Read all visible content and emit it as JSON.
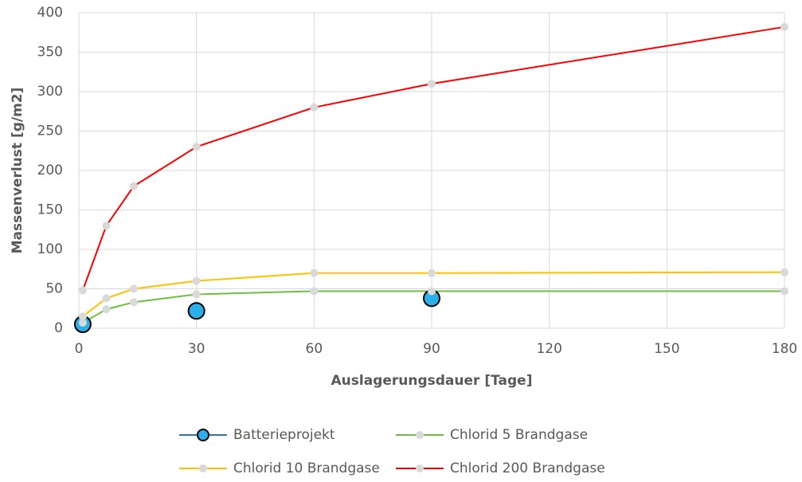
{
  "chart_data": {
    "type": "line",
    "xlabel": "Auslagerungsdauer [Tage]",
    "ylabel": "Massenverlust [g/m2]",
    "xlim": [
      0,
      180
    ],
    "xticks": [
      0,
      30,
      60,
      90,
      120,
      150,
      180
    ],
    "ylim": [
      0,
      400
    ],
    "yticks": [
      0,
      50,
      100,
      150,
      200,
      250,
      300,
      350,
      400
    ],
    "grid": true,
    "legend": "bottom",
    "series": [
      {
        "name": "Batterieprojekt",
        "color": "#2e75b6",
        "marker_color": "#29b0e8",
        "show_line": false,
        "x": [
          1,
          30,
          90
        ],
        "values": [
          5,
          22,
          38
        ]
      },
      {
        "name": "Chlorid 5 Brandgase",
        "color": "#70bf41",
        "marker_color": "#d9d9d9",
        "show_line": true,
        "x": [
          1,
          7,
          14,
          30,
          60,
          90,
          180
        ],
        "values": [
          7,
          24,
          33,
          43,
          47,
          47,
          47
        ]
      },
      {
        "name": "Chlorid 10 Brandgase",
        "color": "#ffc000",
        "marker_color": "#d9d9d9",
        "show_line": true,
        "x": [
          1,
          7,
          14,
          30,
          60,
          90,
          180
        ],
        "values": [
          15,
          38,
          50,
          60,
          70,
          70,
          71
        ]
      },
      {
        "name": "Chlorid 200 Brandgase",
        "color": "#ff0000",
        "marker_color": "#d9d9d9",
        "show_line": true,
        "x": [
          1,
          7,
          14,
          30,
          60,
          90,
          180
        ],
        "values": [
          48,
          130,
          180,
          230,
          280,
          310,
          382
        ]
      }
    ]
  }
}
